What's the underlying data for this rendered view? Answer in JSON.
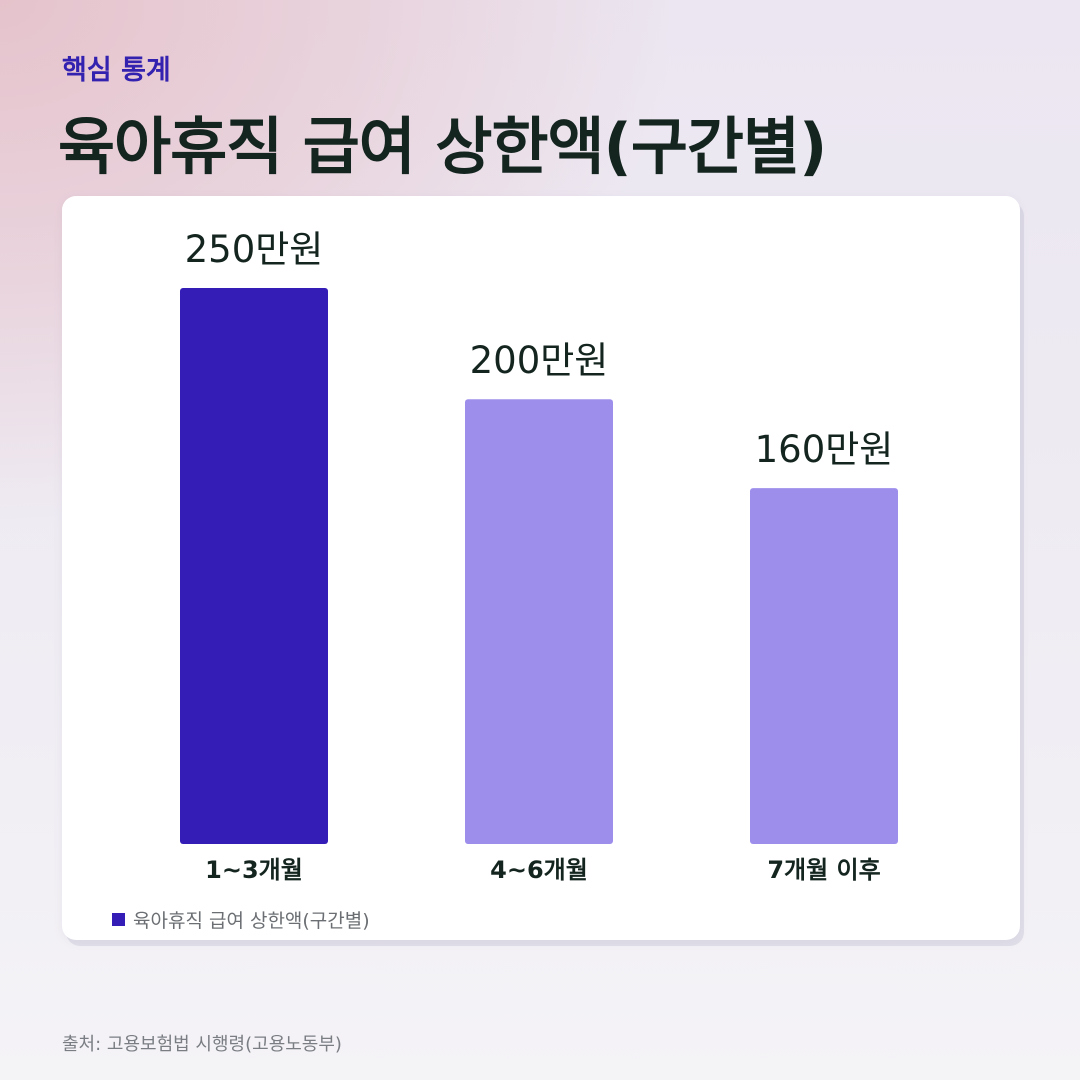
{
  "header": {
    "kicker": "핵심 통계",
    "title": "육아휴직 급여 상한액(구간별)"
  },
  "chart_data": {
    "type": "bar",
    "title": "육아휴직 급여 상한액(구간별)",
    "categories": [
      "1~3개월",
      "4~6개월",
      "7개월 이후"
    ],
    "values": [
      250,
      200,
      160
    ],
    "value_labels": [
      "250만원",
      "200만원",
      "160만원"
    ],
    "bar_colors": [
      "#341db7",
      "#9d8eec",
      "#9d8eec"
    ],
    "ylim": [
      0,
      250
    ],
    "grid": false,
    "legend": {
      "placement": "bottom-left",
      "entries": [
        {
          "label": "육아휴직 급여 상한액(구간별)",
          "color": "#341db7"
        }
      ]
    }
  },
  "footer": {
    "source": "출처: 고용보험법 시행령(고용노동부)"
  }
}
